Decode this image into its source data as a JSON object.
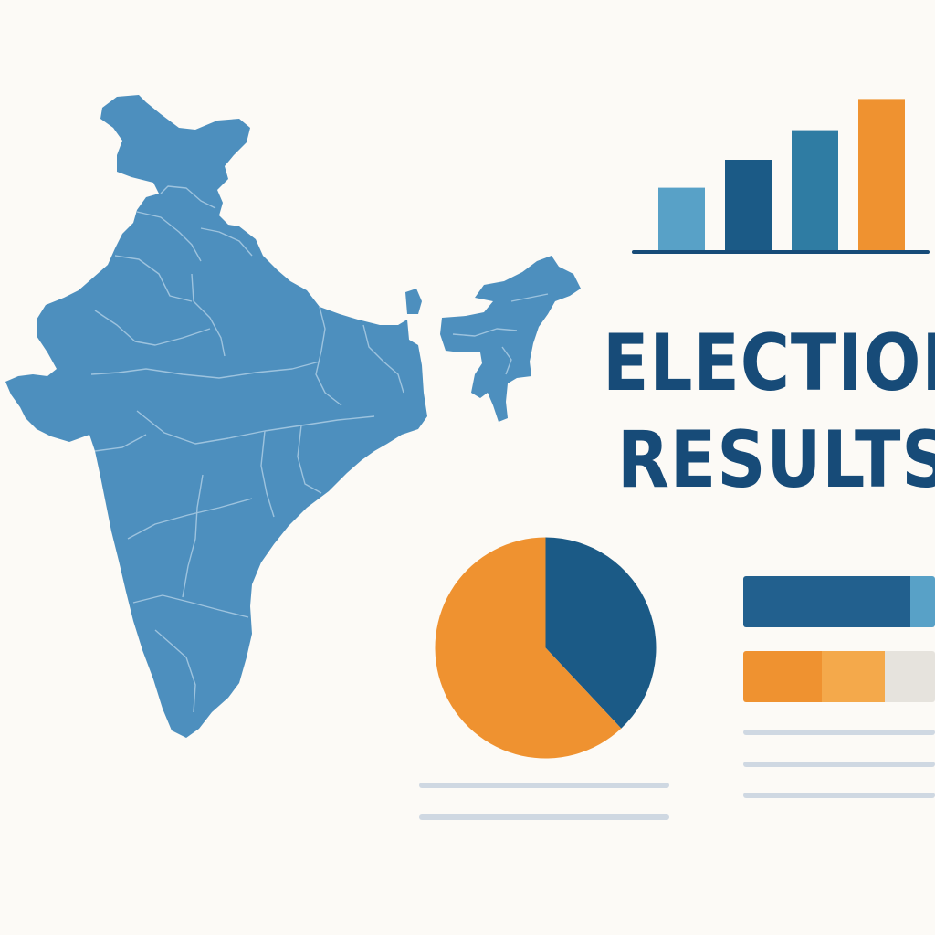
{
  "title": {
    "line1": "ELECTION",
    "line2": "RESULTS"
  },
  "map": {
    "region": "India",
    "fill": "#4d8fbe",
    "border": "#9dc3de"
  },
  "colors": {
    "dark_blue": "#174b78",
    "mid_blue": "#2f7ca3",
    "light_blue": "#58a1c7",
    "orange": "#ef9230",
    "light_orange": "#f4a94b",
    "gray": "#e6e3dd",
    "placeholder": "#cfd8e2"
  },
  "column_chart": {
    "type": "bar",
    "values": [
      38,
      55,
      73,
      92
    ],
    "colors": [
      "#58a1c7",
      "#1b5a86",
      "#2f7ca3",
      "#ef9230"
    ]
  },
  "pie_chart": {
    "type": "pie",
    "slices": [
      {
        "value": 38,
        "color": "#1b5a86"
      },
      {
        "value": 62,
        "color": "#ef9230"
      }
    ]
  },
  "stacked_bars": [
    {
      "segments": [
        {
          "value": 87,
          "color": "#22608e"
        },
        {
          "value": 13,
          "color": "#58a1c7"
        }
      ]
    },
    {
      "segments": [
        {
          "value": 41,
          "color": "#ef9230"
        },
        {
          "value": 33,
          "color": "#f4a94b"
        },
        {
          "value": 26,
          "color": "#e6e3dd"
        }
      ]
    }
  ]
}
